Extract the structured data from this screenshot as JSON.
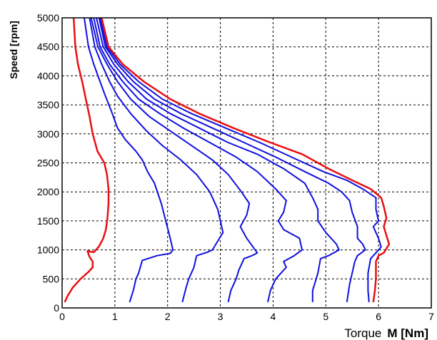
{
  "chart_data": {
    "type": "line",
    "title": "",
    "xlabel_prefix": "Torque",
    "xlabel_symbol": "M [Nm]",
    "ylabel": "Speed [rpm]",
    "xlim": [
      0,
      7
    ],
    "ylim": [
      0,
      5000
    ],
    "x_ticks": [
      0,
      1,
      2,
      3,
      4,
      5,
      6,
      7
    ],
    "y_ticks": [
      0,
      500,
      1000,
      1500,
      2000,
      2500,
      3000,
      3500,
      4000,
      4500,
      5000
    ],
    "grid": true,
    "grid_style": "dashed",
    "series": [
      {
        "color": "#e81010",
        "points": [
          [
            0.22,
            5000
          ],
          [
            0.25,
            4500
          ],
          [
            0.3,
            4200
          ],
          [
            0.38,
            3900
          ],
          [
            0.45,
            3600
          ],
          [
            0.52,
            3300
          ],
          [
            0.58,
            3000
          ],
          [
            0.67,
            2700
          ],
          [
            0.8,
            2500
          ],
          [
            0.85,
            2300
          ],
          [
            0.88,
            2050
          ],
          [
            0.88,
            1800
          ],
          [
            0.86,
            1550
          ],
          [
            0.83,
            1350
          ],
          [
            0.78,
            1200
          ],
          [
            0.7,
            1060
          ],
          [
            0.6,
            960
          ],
          [
            0.48,
            980
          ],
          [
            0.52,
            880
          ],
          [
            0.58,
            800
          ],
          [
            0.58,
            700
          ],
          [
            0.5,
            620
          ],
          [
            0.35,
            500
          ],
          [
            0.2,
            350
          ],
          [
            0.1,
            200
          ],
          [
            0.05,
            100
          ]
        ]
      },
      {
        "color": "#1010e0",
        "points": [
          [
            0.42,
            5000
          ],
          [
            0.5,
            4500
          ],
          [
            0.6,
            4200
          ],
          [
            0.68,
            4000
          ],
          [
            0.8,
            3700
          ],
          [
            0.93,
            3400
          ],
          [
            1.05,
            3100
          ],
          [
            1.2,
            2900
          ],
          [
            1.4,
            2700
          ],
          [
            1.52,
            2550
          ],
          [
            1.62,
            2350
          ],
          [
            1.75,
            2150
          ],
          [
            1.88,
            1800
          ],
          [
            1.98,
            1450
          ],
          [
            2.05,
            1200
          ],
          [
            2.1,
            1000
          ],
          [
            2.05,
            940
          ],
          [
            1.8,
            900
          ],
          [
            1.52,
            820
          ],
          [
            1.45,
            600
          ],
          [
            1.4,
            500
          ],
          [
            1.35,
            300
          ],
          [
            1.28,
            100
          ]
        ]
      },
      {
        "color": "#1010e0",
        "points": [
          [
            0.52,
            5000
          ],
          [
            0.62,
            4500
          ],
          [
            0.75,
            4200
          ],
          [
            0.9,
            3900
          ],
          [
            1.05,
            3650
          ],
          [
            1.3,
            3350
          ],
          [
            1.6,
            3050
          ],
          [
            1.9,
            2800
          ],
          [
            2.25,
            2550
          ],
          [
            2.55,
            2300
          ],
          [
            2.8,
            2000
          ],
          [
            2.95,
            1700
          ],
          [
            3.05,
            1300
          ],
          [
            2.95,
            1150
          ],
          [
            2.85,
            1000
          ],
          [
            2.75,
            960
          ],
          [
            2.55,
            900
          ],
          [
            2.5,
            700
          ],
          [
            2.4,
            500
          ],
          [
            2.35,
            350
          ],
          [
            2.28,
            100
          ]
        ]
      },
      {
        "color": "#1010e0",
        "points": [
          [
            0.55,
            5000
          ],
          [
            0.68,
            4500
          ],
          [
            0.85,
            4200
          ],
          [
            1.05,
            3900
          ],
          [
            1.3,
            3600
          ],
          [
            1.65,
            3300
          ],
          [
            2.05,
            3050
          ],
          [
            2.45,
            2800
          ],
          [
            2.85,
            2550
          ],
          [
            3.15,
            2300
          ],
          [
            3.4,
            2000
          ],
          [
            3.55,
            1800
          ],
          [
            3.5,
            1600
          ],
          [
            3.38,
            1400
          ],
          [
            3.5,
            1200
          ],
          [
            3.7,
            950
          ],
          [
            3.6,
            900
          ],
          [
            3.45,
            850
          ],
          [
            3.35,
            650
          ],
          [
            3.3,
            500
          ],
          [
            3.2,
            300
          ],
          [
            3.15,
            100
          ]
        ]
      },
      {
        "color": "#1010e0",
        "points": [
          [
            0.6,
            5000
          ],
          [
            0.72,
            4500
          ],
          [
            0.9,
            4200
          ],
          [
            1.15,
            3900
          ],
          [
            1.45,
            3600
          ],
          [
            1.85,
            3350
          ],
          [
            2.3,
            3100
          ],
          [
            2.8,
            2850
          ],
          [
            3.3,
            2600
          ],
          [
            3.7,
            2350
          ],
          [
            4.05,
            2050
          ],
          [
            4.25,
            1850
          ],
          [
            4.2,
            1650
          ],
          [
            4.1,
            1500
          ],
          [
            4.2,
            1350
          ],
          [
            4.5,
            1200
          ],
          [
            4.55,
            1000
          ],
          [
            4.4,
            900
          ],
          [
            4.2,
            800
          ],
          [
            4.25,
            700
          ],
          [
            4.05,
            500
          ],
          [
            3.95,
            300
          ],
          [
            3.9,
            100
          ]
        ]
      },
      {
        "color": "#1010e0",
        "points": [
          [
            0.65,
            5000
          ],
          [
            0.78,
            4500
          ],
          [
            0.98,
            4200
          ],
          [
            1.25,
            3900
          ],
          [
            1.6,
            3600
          ],
          [
            2.05,
            3350
          ],
          [
            2.6,
            3100
          ],
          [
            3.15,
            2850
          ],
          [
            3.7,
            2650
          ],
          [
            4.2,
            2400
          ],
          [
            4.6,
            2150
          ],
          [
            4.75,
            1900
          ],
          [
            4.85,
            1700
          ],
          [
            4.85,
            1500
          ],
          [
            5.0,
            1300
          ],
          [
            5.2,
            1100
          ],
          [
            5.25,
            1000
          ],
          [
            5.05,
            900
          ],
          [
            4.9,
            850
          ],
          [
            4.85,
            600
          ],
          [
            4.8,
            450
          ],
          [
            4.75,
            300
          ],
          [
            4.75,
            100
          ]
        ]
      },
      {
        "color": "#1010e0",
        "points": [
          [
            0.7,
            5000
          ],
          [
            0.82,
            4500
          ],
          [
            1.05,
            4200
          ],
          [
            1.35,
            3900
          ],
          [
            1.75,
            3600
          ],
          [
            2.25,
            3350
          ],
          [
            2.85,
            3100
          ],
          [
            3.45,
            2850
          ],
          [
            4.05,
            2600
          ],
          [
            4.6,
            2350
          ],
          [
            5.05,
            2150
          ],
          [
            5.3,
            2000
          ],
          [
            5.45,
            1850
          ],
          [
            5.5,
            1650
          ],
          [
            5.6,
            1400
          ],
          [
            5.6,
            1200
          ],
          [
            5.7,
            1100
          ],
          [
            5.75,
            1000
          ],
          [
            5.6,
            900
          ],
          [
            5.55,
            800
          ],
          [
            5.5,
            600
          ],
          [
            5.45,
            400
          ],
          [
            5.4,
            100
          ]
        ]
      },
      {
        "color": "#1010e0",
        "points": [
          [
            0.72,
            5000
          ],
          [
            0.85,
            4500
          ],
          [
            1.1,
            4200
          ],
          [
            1.45,
            3900
          ],
          [
            1.9,
            3600
          ],
          [
            2.45,
            3350
          ],
          [
            3.1,
            3100
          ],
          [
            3.75,
            2850
          ],
          [
            4.35,
            2600
          ],
          [
            4.95,
            2350
          ],
          [
            5.4,
            2200
          ],
          [
            5.7,
            2050
          ],
          [
            5.95,
            1900
          ],
          [
            5.95,
            1700
          ],
          [
            6.0,
            1500
          ],
          [
            5.9,
            1400
          ],
          [
            6.0,
            1200
          ],
          [
            6.05,
            1050
          ],
          [
            5.95,
            950
          ],
          [
            5.85,
            850
          ],
          [
            5.8,
            600
          ],
          [
            5.8,
            300
          ],
          [
            5.82,
            100
          ]
        ]
      },
      {
        "color": "#e81010",
        "points": [
          [
            0.75,
            5000
          ],
          [
            0.88,
            4500
          ],
          [
            1.15,
            4200
          ],
          [
            1.55,
            3900
          ],
          [
            2.05,
            3600
          ],
          [
            2.6,
            3350
          ],
          [
            3.25,
            3100
          ],
          [
            3.95,
            2850
          ],
          [
            4.55,
            2650
          ],
          [
            5.05,
            2400
          ],
          [
            5.5,
            2200
          ],
          [
            5.85,
            2050
          ],
          [
            6.05,
            1900
          ],
          [
            6.1,
            1750
          ],
          [
            6.15,
            1550
          ],
          [
            6.1,
            1400
          ],
          [
            6.15,
            1250
          ],
          [
            6.2,
            1100
          ],
          [
            6.1,
            950
          ],
          [
            6.0,
            900
          ],
          [
            5.95,
            800
          ],
          [
            5.95,
            500
          ],
          [
            5.93,
            300
          ],
          [
            5.9,
            100
          ]
        ]
      }
    ]
  }
}
